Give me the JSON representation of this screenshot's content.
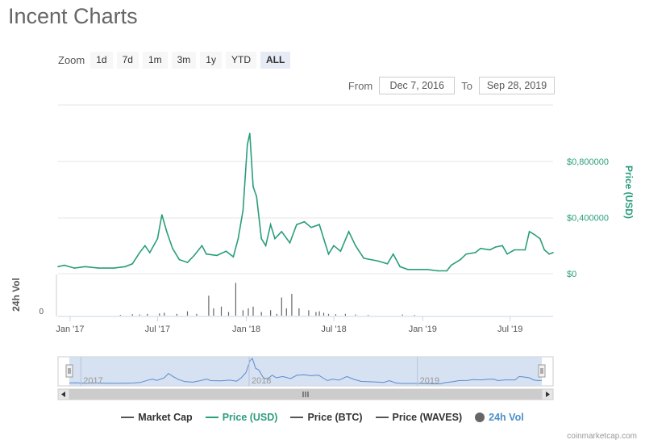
{
  "page_title": "Incent Charts",
  "zoom": {
    "label": "Zoom",
    "buttons": [
      "1d",
      "7d",
      "1m",
      "3m",
      "1y",
      "YTD",
      "ALL"
    ],
    "active": "ALL"
  },
  "range": {
    "from_label": "From",
    "from_value": "Dec 7, 2016",
    "to_label": "To",
    "to_value": "Sep 28, 2019"
  },
  "colors": {
    "price_usd": "#2a9d7c",
    "market_cap": "#555555",
    "price_btc": "#555555",
    "price_waves": "#555555",
    "volume": "#666666",
    "navigator_fill": "#cfdcef",
    "navigator_line": "#5b8bd0"
  },
  "credit": "coinmarketcap.com",
  "chart_data": {
    "type": "line",
    "x_range": [
      "2016-12-07",
      "2019-09-28"
    ],
    "x_ticks": [
      "Jan '17",
      "Jul '17",
      "Jan '18",
      "Jul '18",
      "Jan '19",
      "Jul '19"
    ],
    "y_axis": {
      "label": "Price (USD)",
      "ticks": [
        "$0",
        "$0,400000",
        "$0,800000"
      ],
      "tick_values": [
        0,
        0.4,
        0.8
      ],
      "ylim": [
        0,
        1.2
      ]
    },
    "volume_axis": {
      "label": "24h Vol",
      "ticks": [
        "0"
      ]
    },
    "navigator": {
      "year_labels": [
        "2017",
        "2018",
        "2019"
      ]
    },
    "series": [
      {
        "name": "Price (USD)",
        "points": [
          [
            "2016-12-07",
            0.05
          ],
          [
            "2016-12-20",
            0.06
          ],
          [
            "2017-01-10",
            0.04
          ],
          [
            "2017-02-01",
            0.05
          ],
          [
            "2017-03-01",
            0.04
          ],
          [
            "2017-04-01",
            0.04
          ],
          [
            "2017-04-25",
            0.05
          ],
          [
            "2017-05-10",
            0.07
          ],
          [
            "2017-05-25",
            0.15
          ],
          [
            "2017-06-05",
            0.2
          ],
          [
            "2017-06-15",
            0.15
          ],
          [
            "2017-07-01",
            0.25
          ],
          [
            "2017-07-10",
            0.42
          ],
          [
            "2017-07-20",
            0.3
          ],
          [
            "2017-08-01",
            0.18
          ],
          [
            "2017-08-15",
            0.1
          ],
          [
            "2017-09-01",
            0.08
          ],
          [
            "2017-09-15",
            0.13
          ],
          [
            "2017-10-01",
            0.2
          ],
          [
            "2017-10-10",
            0.14
          ],
          [
            "2017-11-01",
            0.13
          ],
          [
            "2017-11-20",
            0.16
          ],
          [
            "2017-12-05",
            0.12
          ],
          [
            "2017-12-15",
            0.25
          ],
          [
            "2017-12-25",
            0.45
          ],
          [
            "2018-01-03",
            0.92
          ],
          [
            "2018-01-08",
            1.0
          ],
          [
            "2018-01-15",
            0.62
          ],
          [
            "2018-01-22",
            0.55
          ],
          [
            "2018-02-01",
            0.25
          ],
          [
            "2018-02-10",
            0.2
          ],
          [
            "2018-02-20",
            0.35
          ],
          [
            "2018-03-01",
            0.25
          ],
          [
            "2018-03-15",
            0.3
          ],
          [
            "2018-04-01",
            0.22
          ],
          [
            "2018-04-15",
            0.35
          ],
          [
            "2018-05-01",
            0.37
          ],
          [
            "2018-05-15",
            0.33
          ],
          [
            "2018-06-01",
            0.35
          ],
          [
            "2018-06-10",
            0.25
          ],
          [
            "2018-06-20",
            0.14
          ],
          [
            "2018-07-01",
            0.2
          ],
          [
            "2018-07-15",
            0.16
          ],
          [
            "2018-08-01",
            0.3
          ],
          [
            "2018-08-15",
            0.2
          ],
          [
            "2018-09-01",
            0.11
          ],
          [
            "2018-10-01",
            0.09
          ],
          [
            "2018-10-20",
            0.07
          ],
          [
            "2018-11-01",
            0.14
          ],
          [
            "2018-11-15",
            0.05
          ],
          [
            "2018-12-01",
            0.03
          ],
          [
            "2018-12-20",
            0.03
          ],
          [
            "2019-01-10",
            0.03
          ],
          [
            "2019-02-01",
            0.02
          ],
          [
            "2019-02-20",
            0.02
          ],
          [
            "2019-03-01",
            0.06
          ],
          [
            "2019-03-20",
            0.1
          ],
          [
            "2019-04-01",
            0.14
          ],
          [
            "2019-04-20",
            0.15
          ],
          [
            "2019-05-01",
            0.18
          ],
          [
            "2019-05-20",
            0.17
          ],
          [
            "2019-06-01",
            0.19
          ],
          [
            "2019-06-15",
            0.2
          ],
          [
            "2019-06-25",
            0.14
          ],
          [
            "2019-07-10",
            0.17
          ],
          [
            "2019-08-01",
            0.17
          ],
          [
            "2019-08-10",
            0.3
          ],
          [
            "2019-08-20",
            0.28
          ],
          [
            "2019-09-01",
            0.25
          ],
          [
            "2019-09-10",
            0.17
          ],
          [
            "2019-09-20",
            0.14
          ],
          [
            "2019-09-28",
            0.15
          ]
        ]
      },
      {
        "name": "Market Cap",
        "points": []
      },
      {
        "name": "Price (BTC)",
        "points": []
      },
      {
        "name": "Price (WAVES)",
        "points": []
      },
      {
        "name": "24h Vol",
        "points": [
          [
            "2017-04-15",
            0.02
          ],
          [
            "2017-05-10",
            0.04
          ],
          [
            "2017-05-25",
            0.03
          ],
          [
            "2017-06-10",
            0.05
          ],
          [
            "2017-07-05",
            0.06
          ],
          [
            "2017-07-15",
            0.08
          ],
          [
            "2017-08-10",
            0.05
          ],
          [
            "2017-09-01",
            0.12
          ],
          [
            "2017-09-20",
            0.05
          ],
          [
            "2017-10-15",
            0.55
          ],
          [
            "2017-10-25",
            0.2
          ],
          [
            "2017-11-10",
            0.25
          ],
          [
            "2017-11-25",
            0.1
          ],
          [
            "2017-12-10",
            0.9
          ],
          [
            "2017-12-25",
            0.15
          ],
          [
            "2018-01-05",
            0.2
          ],
          [
            "2018-01-15",
            0.25
          ],
          [
            "2018-02-01",
            0.1
          ],
          [
            "2018-02-20",
            0.15
          ],
          [
            "2018-03-05",
            0.05
          ],
          [
            "2018-03-15",
            0.5
          ],
          [
            "2018-03-25",
            0.2
          ],
          [
            "2018-04-05",
            0.6
          ],
          [
            "2018-04-20",
            0.2
          ],
          [
            "2018-05-10",
            0.15
          ],
          [
            "2018-05-25",
            0.1
          ],
          [
            "2018-06-01",
            0.12
          ],
          [
            "2018-06-10",
            0.08
          ],
          [
            "2018-06-20",
            0.05
          ],
          [
            "2018-07-05",
            0.04
          ],
          [
            "2018-07-25",
            0.05
          ],
          [
            "2018-08-15",
            0.03
          ],
          [
            "2018-09-10",
            0.02
          ],
          [
            "2018-11-20",
            0.03
          ],
          [
            "2018-12-15",
            0.02
          ]
        ]
      }
    ],
    "grid": true,
    "legend_position": "bottom-center"
  }
}
